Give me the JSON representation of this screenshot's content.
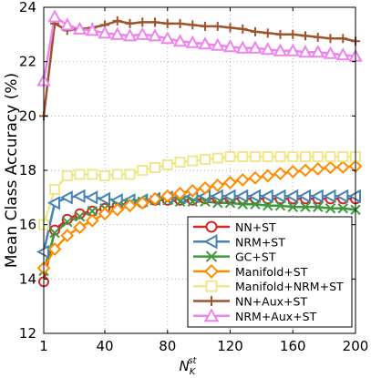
{
  "chart_data": {
    "type": "line",
    "ylabel": "Mean Class Accuracy (%)",
    "xlabel_main": "N",
    "xlabel_sub": "K",
    "xlabel_sup": "st",
    "xlim": [
      1,
      200
    ],
    "ylim": [
      12,
      24
    ],
    "xticks": [
      1,
      40,
      80,
      120,
      160,
      200
    ],
    "yticks": [
      12,
      14,
      16,
      18,
      20,
      22,
      24
    ],
    "grid": true,
    "legend_position": "bottom-right",
    "x": [
      1,
      8,
      16,
      24,
      32,
      40,
      48,
      56,
      64,
      72,
      80,
      88,
      96,
      104,
      112,
      120,
      128,
      136,
      144,
      152,
      160,
      168,
      176,
      184,
      192,
      200
    ],
    "series": [
      {
        "name": "NN+ST",
        "color": "#d62728",
        "marker": "circle",
        "values": [
          13.9,
          15.8,
          16.2,
          16.4,
          16.5,
          16.6,
          16.7,
          16.8,
          16.8,
          16.9,
          16.9,
          16.9,
          16.9,
          16.95,
          16.95,
          16.95,
          16.95,
          16.95,
          16.95,
          16.95,
          16.95,
          16.95,
          16.95,
          16.95,
          16.95,
          16.95
        ]
      },
      {
        "name": "NRM+ST",
        "color": "#4682b4",
        "marker": "triangle-left",
        "values": [
          15.0,
          16.8,
          17.0,
          17.05,
          17.0,
          16.95,
          16.9,
          16.9,
          16.9,
          16.95,
          17.0,
          17.0,
          17.05,
          17.05,
          17.05,
          17.05,
          17.05,
          17.05,
          17.05,
          17.05,
          17.05,
          17.05,
          17.05,
          17.05,
          17.05,
          17.05
        ]
      },
      {
        "name": "GC+ST",
        "color": "#3c9a3c",
        "marker": "x",
        "values": [
          14.3,
          15.7,
          16.1,
          16.3,
          16.5,
          16.6,
          16.7,
          16.8,
          16.85,
          16.9,
          16.9,
          16.85,
          16.85,
          16.85,
          16.8,
          16.8,
          16.75,
          16.75,
          16.7,
          16.7,
          16.65,
          16.65,
          16.65,
          16.6,
          16.6,
          16.55
        ]
      },
      {
        "name": "Manifold+ST",
        "color": "#ff8c00",
        "marker": "diamond",
        "values": [
          14.4,
          15.1,
          15.6,
          15.9,
          16.15,
          16.4,
          16.55,
          16.7,
          16.8,
          16.95,
          17.05,
          17.15,
          17.25,
          17.35,
          17.45,
          17.55,
          17.65,
          17.72,
          17.8,
          17.88,
          17.95,
          18.0,
          18.05,
          18.1,
          18.12,
          18.15
        ]
      },
      {
        "name": "Manifold+NRM+ST",
        "color": "#f0e68c",
        "marker": "square",
        "values": [
          16.0,
          17.3,
          17.8,
          17.85,
          17.85,
          17.8,
          17.85,
          17.85,
          18.0,
          18.1,
          18.2,
          18.3,
          18.35,
          18.4,
          18.45,
          18.5,
          18.5,
          18.5,
          18.5,
          18.5,
          18.5,
          18.5,
          18.5,
          18.5,
          18.5,
          18.5
        ]
      },
      {
        "name": "NN+Aux+ST",
        "color": "#a0522d",
        "marker": "plus",
        "values": [
          20.0,
          23.4,
          23.15,
          23.2,
          23.25,
          23.35,
          23.5,
          23.4,
          23.45,
          23.45,
          23.4,
          23.4,
          23.35,
          23.3,
          23.3,
          23.25,
          23.2,
          23.1,
          23.05,
          23.0,
          23.0,
          22.95,
          22.9,
          22.85,
          22.85,
          22.75
        ]
      },
      {
        "name": "NRM+Aux+ST",
        "color": "#ee82ee",
        "marker": "triangle-up",
        "values": [
          21.3,
          23.65,
          23.35,
          23.2,
          23.15,
          23.05,
          23.0,
          22.95,
          23.0,
          22.95,
          22.85,
          22.75,
          22.7,
          22.65,
          22.6,
          22.55,
          22.5,
          22.5,
          22.45,
          22.4,
          22.4,
          22.35,
          22.35,
          22.3,
          22.25,
          22.2
        ]
      }
    ]
  }
}
